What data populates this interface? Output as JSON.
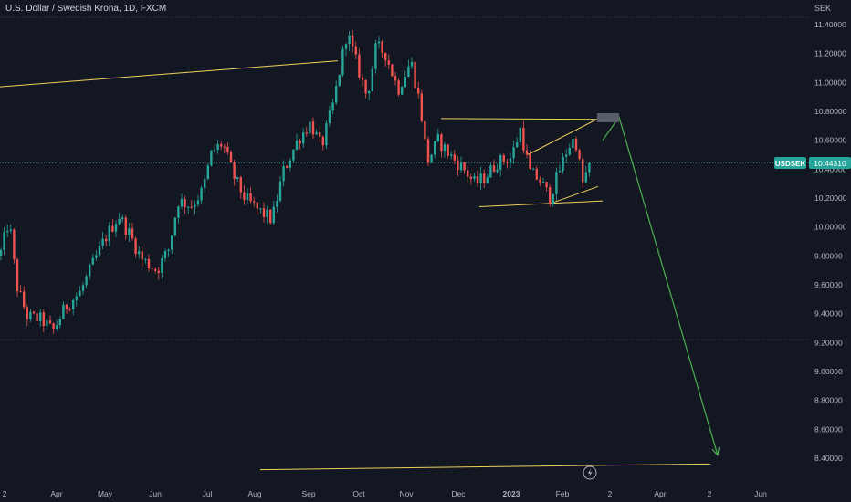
{
  "header": {
    "title": "U.S. Dollar / Swedish Krona, 1D, FXCM"
  },
  "price_axis": {
    "currency": "SEK",
    "ticks": [
      "11.40000",
      "11.20000",
      "11.00000",
      "10.80000",
      "10.60000",
      "10.40000",
      "10.20000",
      "10.00000",
      "9.80000",
      "9.60000",
      "9.40000",
      "9.20000",
      "9.00000",
      "8.80000",
      "8.60000",
      "8.40000"
    ]
  },
  "time_axis": {
    "labels": [
      "2",
      "Apr",
      "May",
      "Jun",
      "Jul",
      "Aug",
      "Sep",
      "Oct",
      "Nov",
      "Dec",
      "2023",
      "Feb",
      "2",
      "Apr",
      "2",
      "Jun"
    ]
  },
  "last_price": {
    "symbol": "USDSEK",
    "value": "10.44310"
  },
  "colors": {
    "background": "#131722",
    "up": "#26a69a",
    "down": "#ef5350",
    "trendline": "#f0d05a",
    "projection": "#4caf50",
    "grid_line": "#363a45"
  },
  "icons": {
    "replay_marker": "lightning-icon"
  },
  "chart_data": {
    "type": "candlestick",
    "symbol": "USDSEK",
    "interval": "1D",
    "ylim": [
      8.32,
      11.5
    ],
    "y_ticks": [
      11.4,
      11.2,
      11.0,
      10.8,
      10.6,
      10.4,
      10.2,
      10.0,
      9.8,
      9.6,
      9.4,
      9.2,
      9.0,
      8.8,
      8.6,
      8.4
    ],
    "last_price": 10.4431,
    "horizontal_levels": [
      11.45,
      10.4431,
      9.22
    ],
    "path": [
      [
        0,
        9.8
      ],
      [
        10,
        10.05
      ],
      [
        18,
        9.6
      ],
      [
        30,
        9.38
      ],
      [
        45,
        9.36
      ],
      [
        58,
        9.28
      ],
      [
        72,
        9.45
      ],
      [
        88,
        9.55
      ],
      [
        100,
        9.72
      ],
      [
        115,
        9.92
      ],
      [
        130,
        10.08
      ],
      [
        142,
        9.95
      ],
      [
        155,
        9.78
      ],
      [
        172,
        9.7
      ],
      [
        185,
        9.85
      ],
      [
        195,
        10.18
      ],
      [
        210,
        10.15
      ],
      [
        222,
        10.25
      ],
      [
        232,
        10.52
      ],
      [
        244,
        10.58
      ],
      [
        256,
        10.35
      ],
      [
        268,
        10.2
      ],
      [
        282,
        10.12
      ],
      [
        298,
        10.05
      ],
      [
        310,
        10.38
      ],
      [
        326,
        10.6
      ],
      [
        340,
        10.72
      ],
      [
        352,
        10.55
      ],
      [
        365,
        10.85
      ],
      [
        380,
        11.35
      ],
      [
        392,
        11.1
      ],
      [
        402,
        10.9
      ],
      [
        412,
        11.25
      ],
      [
        422,
        11.2
      ],
      [
        436,
        10.95
      ],
      [
        450,
        11.15
      ],
      [
        460,
        10.85
      ],
      [
        468,
        10.45
      ],
      [
        480,
        10.6
      ],
      [
        492,
        10.5
      ],
      [
        508,
        10.4
      ],
      [
        520,
        10.3
      ],
      [
        532,
        10.35
      ],
      [
        545,
        10.45
      ],
      [
        560,
        10.48
      ],
      [
        570,
        10.68
      ],
      [
        580,
        10.38
      ],
      [
        592,
        10.32
      ],
      [
        602,
        10.2
      ],
      [
        612,
        10.38
      ],
      [
        622,
        10.55
      ],
      [
        630,
        10.62
      ],
      [
        638,
        10.3
      ],
      [
        646,
        10.44
      ]
    ],
    "drawings": [
      {
        "kind": "trendline",
        "color": "trendline",
        "points": [
          [
            0,
            10.97
          ],
          [
            370,
            11.15
          ]
        ]
      },
      {
        "kind": "trendline",
        "color": "trendline",
        "points": [
          [
            483,
            10.75
          ],
          [
            655,
            10.745
          ]
        ]
      },
      {
        "kind": "trendline",
        "color": "trendline",
        "points": [
          [
            525,
            10.14
          ],
          [
            660,
            10.18
          ]
        ]
      },
      {
        "kind": "trendline",
        "color": "trendline",
        "points": [
          [
            578,
            10.5
          ],
          [
            652,
            10.74
          ]
        ]
      },
      {
        "kind": "trendline",
        "color": "trendline",
        "points": [
          [
            602,
            10.16
          ],
          [
            655,
            10.28
          ]
        ]
      },
      {
        "kind": "trendline",
        "color": "trendline",
        "points": [
          [
            285,
            8.32
          ],
          [
            778,
            8.36
          ]
        ]
      },
      {
        "kind": "arrow",
        "color": "projection",
        "points": [
          [
            660,
            10.6
          ],
          [
            678,
            10.76
          ],
          [
            786,
            8.42
          ]
        ]
      }
    ],
    "x_labels": [
      "2",
      "Apr",
      "May",
      "Jun",
      "Jul",
      "Aug",
      "Sep",
      "Oct",
      "Nov",
      "Dec",
      "2023",
      "Feb",
      "2",
      "Apr",
      "2",
      "Jun"
    ]
  }
}
